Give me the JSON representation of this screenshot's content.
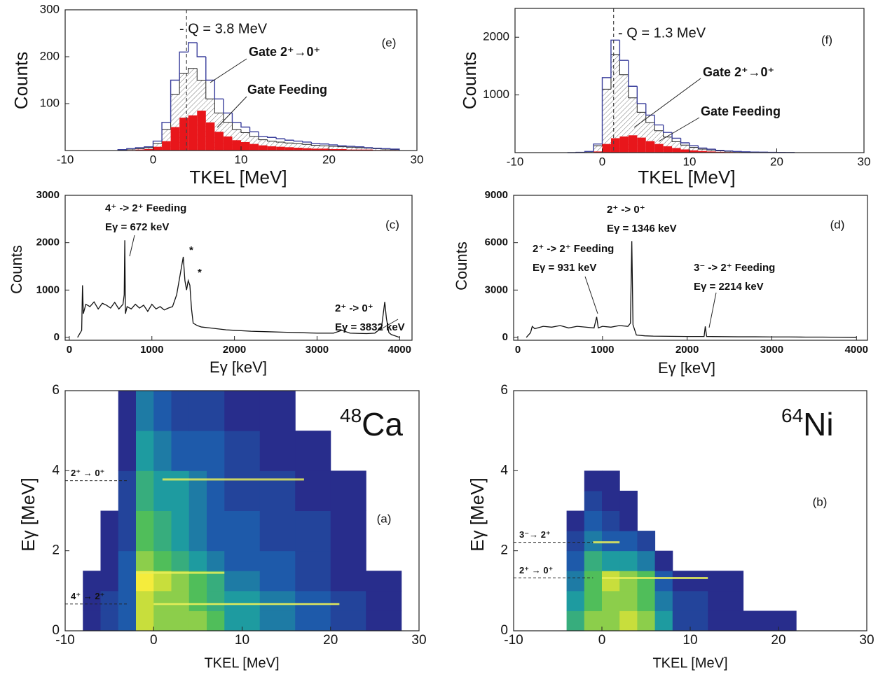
{
  "chart_data": [
    {
      "type": "histogram",
      "label": "(e)",
      "annotation": "- Q = 3.8 MeV",
      "q_value": 3.8,
      "xlabel": "TKEL [MeV]",
      "ylabel": "Counts",
      "xlim": [
        -10,
        30
      ],
      "ylim": [
        0,
        300
      ],
      "xticks": [
        -10,
        0,
        10,
        20,
        30
      ],
      "yticks": [
        100,
        200,
        300
      ],
      "bins": [
        -4,
        -3,
        -2,
        -1,
        0,
        1,
        2,
        3,
        4,
        5,
        6,
        7,
        8,
        9,
        10,
        11,
        12,
        13,
        14,
        15,
        16,
        17,
        18,
        19,
        20,
        21,
        22,
        23,
        24,
        25,
        26,
        27,
        28
      ],
      "series": [
        {
          "name": "Gate 2⁺→0⁺",
          "color": "#3a3f9c",
          "style": "step",
          "values": [
            2,
            4,
            6,
            8,
            20,
            60,
            150,
            210,
            230,
            200,
            150,
            110,
            80,
            60,
            50,
            40,
            30,
            28,
            25,
            22,
            20,
            18,
            15,
            14,
            12,
            10,
            9,
            8,
            6,
            5,
            4,
            3
          ]
        },
        {
          "name": "Gate Feeding",
          "color": "#e8161b",
          "style": "filled",
          "values": [
            0,
            1,
            2,
            3,
            8,
            20,
            50,
            70,
            75,
            85,
            60,
            40,
            30,
            22,
            18,
            14,
            11,
            9,
            8,
            7,
            6,
            5,
            4,
            4,
            3,
            3,
            2,
            2,
            2,
            1,
            1,
            1
          ]
        },
        {
          "color": "#222222",
          "style": "hatched",
          "values": [
            1,
            3,
            4,
            6,
            15,
            45,
            120,
            165,
            175,
            150,
            110,
            80,
            60,
            45,
            38,
            30,
            23,
            20,
            18,
            16,
            15,
            13,
            11,
            10,
            9,
            8,
            7,
            6,
            5,
            4,
            3,
            2
          ]
        }
      ]
    },
    {
      "type": "histogram",
      "label": "(f)",
      "annotation": "- Q = 1.3 MeV",
      "q_value": 1.3,
      "xlabel": "TKEL [MeV]",
      "ylabel": "Counts",
      "xlim": [
        -10,
        30
      ],
      "ylim": [
        0,
        2500
      ],
      "xticks": [
        -10,
        0,
        10,
        20,
        30
      ],
      "yticks": [
        1000,
        2000
      ],
      "bins": [
        -4,
        -3,
        -2,
        -1,
        0,
        1,
        2,
        3,
        4,
        5,
        6,
        7,
        8,
        9,
        10,
        11,
        12,
        13,
        14,
        15,
        16,
        17,
        18,
        19,
        20,
        21,
        22
      ],
      "series": [
        {
          "name": "Gate 2⁺→0⁺",
          "color": "#3a3f9c",
          "style": "step",
          "values": [
            0,
            5,
            20,
            150,
            1300,
            1950,
            1600,
            1150,
            850,
            650,
            480,
            350,
            250,
            170,
            120,
            80,
            60,
            40,
            30,
            20,
            15,
            10,
            8,
            5,
            3,
            2
          ]
        },
        {
          "name": "Gate Feeding",
          "color": "#e8161b",
          "style": "filled",
          "values": [
            0,
            0,
            5,
            20,
            150,
            250,
            280,
            300,
            260,
            200,
            150,
            110,
            80,
            55,
            40,
            28,
            20,
            14,
            10,
            7,
            5,
            4,
            3,
            2,
            1,
            1
          ]
        },
        {
          "color": "#222222",
          "style": "hatched",
          "values": [
            0,
            4,
            15,
            120,
            1100,
            1700,
            1350,
            950,
            700,
            520,
            380,
            270,
            190,
            130,
            90,
            60,
            45,
            30,
            22,
            15,
            11,
            8,
            6,
            4,
            2,
            1
          ]
        }
      ]
    },
    {
      "type": "line",
      "label": "(c)",
      "xlabel": "Eγ [keV]",
      "ylabel": "Counts",
      "xlim": [
        -50,
        4150
      ],
      "ylim": [
        -60,
        3000
      ],
      "xticks": [
        0,
        1000,
        2000,
        3000,
        4000
      ],
      "yticks": [
        0,
        1000,
        2000,
        3000
      ],
      "color": "#111111",
      "x": [
        100,
        150,
        160,
        170,
        200,
        250,
        300,
        350,
        400,
        450,
        500,
        550,
        600,
        650,
        665,
        672,
        680,
        700,
        750,
        800,
        850,
        900,
        950,
        1000,
        1050,
        1100,
        1150,
        1200,
        1250,
        1300,
        1350,
        1380,
        1400,
        1420,
        1440,
        1460,
        1480,
        1500,
        1550,
        1600,
        1700,
        1800,
        1900,
        2000,
        2200,
        2400,
        2600,
        2800,
        3000,
        3200,
        3300,
        3400,
        3600,
        3700,
        3780,
        3820,
        3840,
        3870,
        3900,
        4000
      ],
      "values": [
        0,
        150,
        1100,
        500,
        700,
        650,
        750,
        600,
        720,
        680,
        620,
        740,
        600,
        700,
        900,
        2050,
        500,
        650,
        600,
        700,
        620,
        680,
        550,
        700,
        600,
        650,
        580,
        620,
        650,
        900,
        1400,
        1700,
        1200,
        1000,
        1200,
        1100,
        600,
        300,
        250,
        220,
        200,
        180,
        160,
        150,
        130,
        120,
        110,
        100,
        90,
        90,
        150,
        90,
        80,
        90,
        200,
        750,
        400,
        100,
        60,
        0
      ],
      "annotations": [
        {
          "lines": [
            "4⁺ -> 2⁺  Feeding",
            "Eγ = 672 keV"
          ],
          "color": "#e8161b"
        },
        {
          "lines": [
            "2⁺ -> 0⁺",
            "Eγ = 3832 keV"
          ],
          "color": "#3a3f9c"
        },
        {
          "lines": [
            "*"
          ],
          "color": "#111111"
        },
        {
          "lines": [
            "*"
          ],
          "color": "#111111"
        }
      ]
    },
    {
      "type": "line",
      "label": "(d)",
      "xlabel": "Eγ [keV]",
      "ylabel": "Counts",
      "xlim": [
        -50,
        4130
      ],
      "ylim": [
        -180,
        9000
      ],
      "xticks": [
        0,
        1000,
        2000,
        3000,
        4000
      ],
      "yticks": [
        0,
        3000,
        6000,
        9000
      ],
      "color": "#111111",
      "x": [
        100,
        150,
        170,
        200,
        300,
        400,
        500,
        600,
        700,
        800,
        900,
        931,
        950,
        1000,
        1100,
        1200,
        1300,
        1330,
        1346,
        1360,
        1400,
        1500,
        1600,
        1800,
        2000,
        2200,
        2214,
        2230,
        2400,
        2600,
        2800,
        3000,
        3200,
        3400,
        3600,
        3800,
        4000
      ],
      "values": [
        0,
        300,
        700,
        550,
        700,
        650,
        750,
        600,
        700,
        650,
        600,
        1300,
        600,
        700,
        650,
        750,
        700,
        900,
        6100,
        800,
        150,
        100,
        80,
        70,
        60,
        60,
        700,
        60,
        50,
        40,
        40,
        30,
        30,
        20,
        20,
        10,
        0
      ],
      "annotations": [
        {
          "lines": [
            "2⁺ -> 0⁺",
            "Eγ = 1346 keV"
          ],
          "color": "#3a3f9c"
        },
        {
          "lines": [
            "2⁺ -> 2⁺ Feeding",
            "Eγ = 931 keV"
          ],
          "color": "#e8161b"
        },
        {
          "lines": [
            "3⁻ -> 2⁺ Feeding",
            "Eγ = 2214 keV"
          ],
          "color": "#e8161b"
        }
      ]
    },
    {
      "type": "heatmap",
      "label": "(a)",
      "nucleus": {
        "mass": "48",
        "symbol": "Ca"
      },
      "xlabel": "TKEL [MeV]",
      "ylabel": "Eγ [MeV]",
      "xlim": [
        -10,
        30
      ],
      "ylim": [
        0,
        6
      ],
      "xticks": [
        -10,
        0,
        10,
        20,
        30
      ],
      "yticks": [
        0,
        2,
        4,
        6
      ],
      "x_edges": [
        -8,
        -6,
        -4,
        -2,
        0,
        2,
        4,
        6,
        8,
        12,
        16,
        20,
        24,
        28
      ],
      "y_edges": [
        0,
        0.5,
        1,
        1.5,
        2,
        3,
        4,
        5,
        6
      ],
      "z": [
        [
          1,
          2,
          3,
          9,
          8,
          8,
          8,
          7,
          5,
          4,
          3,
          2,
          1
        ],
        [
          1,
          2,
          3,
          9,
          8,
          8,
          7,
          6,
          5,
          4,
          3,
          2,
          1
        ],
        [
          1,
          1,
          3,
          10,
          9,
          8,
          7,
          6,
          4,
          3,
          2,
          1,
          1
        ],
        [
          0,
          1,
          3,
          8,
          7,
          6,
          5,
          4,
          3,
          3,
          2,
          1,
          0
        ],
        [
          0,
          1,
          2,
          7,
          6,
          5,
          4,
          3,
          3,
          2,
          2,
          1,
          0
        ],
        [
          0,
          0,
          2,
          6,
          5,
          5,
          4,
          3,
          2,
          2,
          1,
          1,
          0
        ],
        [
          0,
          0,
          1,
          5,
          4,
          3,
          3,
          3,
          2,
          1,
          1,
          0,
          0
        ],
        [
          0,
          0,
          1,
          4,
          3,
          2,
          2,
          2,
          1,
          1,
          0,
          0,
          0
        ]
      ],
      "streaks": [
        {
          "y": 3.78,
          "x": [
            1,
            17
          ]
        },
        {
          "y": 1.45,
          "x": [
            -2,
            8
          ]
        },
        {
          "y": 0.67,
          "x": [
            0,
            21
          ]
        }
      ],
      "markers": [
        {
          "label": "2⁺ → 0⁺",
          "y": 3.75,
          "x_end": -3
        },
        {
          "label": "4⁺ → 2⁺",
          "y": 0.67,
          "x_end": -3
        }
      ]
    },
    {
      "type": "heatmap",
      "label": "(b)",
      "nucleus": {
        "mass": "64",
        "symbol": "Ni"
      },
      "xlabel": "TKEL [MeV]",
      "ylabel": "Eγ [MeV]",
      "xlim": [
        -10,
        30
      ],
      "ylim": [
        0,
        6
      ],
      "xticks": [
        -10,
        0,
        10,
        20,
        30
      ],
      "yticks": [
        0,
        2,
        4,
        6
      ],
      "x_edges": [
        -4,
        -2,
        0,
        2,
        4,
        6,
        8,
        12,
        16,
        22
      ],
      "y_edges": [
        0,
        0.5,
        1,
        1.5,
        2,
        2.5,
        3,
        3.5,
        4
      ],
      "z": [
        [
          6,
          8,
          8,
          9,
          8,
          5,
          2,
          1,
          1
        ],
        [
          5,
          7,
          8,
          8,
          7,
          4,
          2,
          1,
          0
        ],
        [
          4,
          7,
          9,
          8,
          7,
          3,
          1,
          1,
          0
        ],
        [
          3,
          6,
          5,
          5,
          4,
          1,
          0,
          0,
          0
        ],
        [
          2,
          4,
          3,
          3,
          2,
          0,
          0,
          0,
          0
        ],
        [
          1,
          3,
          2,
          1,
          0,
          0,
          0,
          0,
          0
        ],
        [
          0,
          2,
          1,
          1,
          0,
          0,
          0,
          0,
          0
        ],
        [
          0,
          1,
          1,
          0,
          0,
          0,
          0,
          0,
          0
        ]
      ],
      "streaks": [
        {
          "y": 1.32,
          "x": [
            0,
            12
          ]
        },
        {
          "y": 2.21,
          "x": [
            -1,
            2
          ]
        }
      ],
      "markers": [
        {
          "label": "3⁻→ 2⁺",
          "y": 2.21,
          "x_end": -1
        },
        {
          "label": "2⁺ → 0⁺",
          "y": 1.32,
          "x_end": -1
        }
      ]
    }
  ]
}
